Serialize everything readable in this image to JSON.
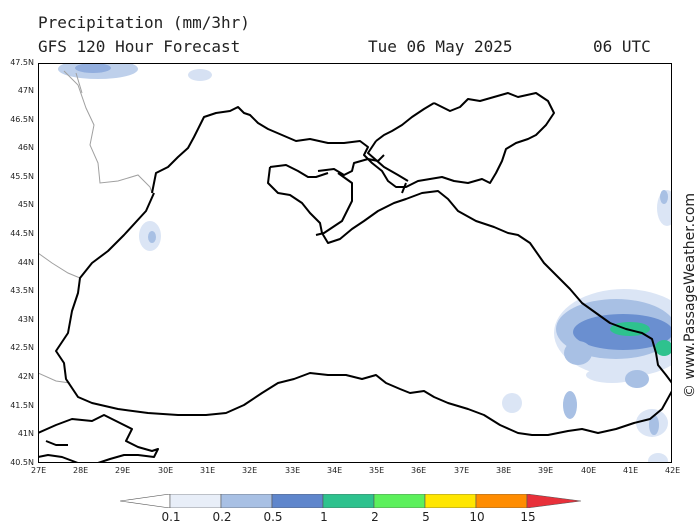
{
  "header": {
    "title": "Precipitation (mm/3hr)",
    "subtitle": "GFS 120 Hour Forecast",
    "date": "Tue 06 May 2025",
    "time": "06 UTC"
  },
  "credit": "© www.PassageWeather.com",
  "axes": {
    "lat_labels": [
      "47.5N",
      "47N",
      "46.5N",
      "46N",
      "45.5N",
      "45N",
      "44.5N",
      "44N",
      "43.5N",
      "43N",
      "42.5N",
      "42N",
      "41.5N",
      "41N",
      "40.5N"
    ],
    "lon_labels": [
      "27E",
      "28E",
      "29E",
      "30E",
      "31E",
      "32E",
      "33E",
      "34E",
      "35E",
      "36E",
      "37E",
      "38E",
      "39E",
      "40E",
      "41E",
      "42E"
    ],
    "lat_range": [
      40.5,
      47.5
    ],
    "lon_range": [
      27,
      42
    ]
  },
  "legend": {
    "labels": [
      "0.1",
      "0.2",
      "0.5",
      "1",
      "2",
      "5",
      "10",
      "15"
    ],
    "colors": [
      "#ffffff",
      "#e8eef8",
      "#a8c0e4",
      "#5f86cc",
      "#2ec28e",
      "#5cf05c",
      "#ffe600",
      "#ff8c00",
      "#e8303a"
    ]
  },
  "colors": {
    "land_line": "#000000",
    "border_line": "#a0a0a0",
    "frame": "#000000"
  }
}
